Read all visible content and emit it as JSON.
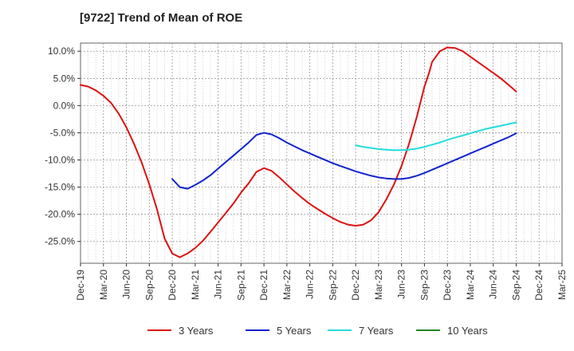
{
  "chart_data": {
    "type": "line",
    "title": "[9722]  Trend of Mean of ROE",
    "xlabel": "",
    "ylabel": "",
    "ylim": [
      -29,
      11.5
    ],
    "y_ticks": [
      10,
      5,
      0,
      -5,
      -10,
      -15,
      -20,
      -25
    ],
    "y_tick_labels": [
      "10.0%",
      "5.0%",
      "0.0%",
      "-5.0%",
      "-10.0%",
      "-15.0%",
      "-20.0%",
      "-25.0%"
    ],
    "x_ticks": [
      "Dec-19",
      "Mar-20",
      "Jun-20",
      "Sep-20",
      "Dec-20",
      "Mar-21",
      "Jun-21",
      "Sep-21",
      "Dec-21",
      "Mar-22",
      "Jun-22",
      "Sep-22",
      "Dec-22",
      "Mar-23",
      "Jun-23",
      "Sep-23",
      "Dec-23",
      "Mar-24",
      "Jun-24",
      "Sep-24",
      "Dec-24",
      "Mar-25"
    ],
    "grid": true,
    "legend_position": "bottom",
    "series": [
      {
        "name": "3 Years",
        "color": "#dd1111",
        "points": [
          [
            0,
            3.8
          ],
          [
            0.33,
            3.5
          ],
          [
            0.67,
            2.8
          ],
          [
            1,
            1.8
          ],
          [
            1.33,
            0.5
          ],
          [
            1.67,
            -1.5
          ],
          [
            2,
            -4.0
          ],
          [
            2.33,
            -7.0
          ],
          [
            2.67,
            -10.5
          ],
          [
            3,
            -14.5
          ],
          [
            3.33,
            -19.0
          ],
          [
            3.67,
            -24.5
          ],
          [
            4,
            -27.2
          ],
          [
            4.33,
            -27.9
          ],
          [
            4.67,
            -27.2
          ],
          [
            5,
            -26.2
          ],
          [
            5.33,
            -24.9
          ],
          [
            5.67,
            -23.2
          ],
          [
            6,
            -21.5
          ],
          [
            6.33,
            -19.8
          ],
          [
            6.67,
            -18.0
          ],
          [
            7,
            -16.0
          ],
          [
            7.33,
            -14.3
          ],
          [
            7.67,
            -12.2
          ],
          [
            8,
            -11.5
          ],
          [
            8.33,
            -12.0
          ],
          [
            8.67,
            -13.2
          ],
          [
            9,
            -14.5
          ],
          [
            9.33,
            -15.8
          ],
          [
            9.67,
            -17.0
          ],
          [
            10,
            -18.1
          ],
          [
            10.33,
            -19.0
          ],
          [
            10.67,
            -19.9
          ],
          [
            11,
            -20.7
          ],
          [
            11.33,
            -21.4
          ],
          [
            11.67,
            -21.9
          ],
          [
            12,
            -22.1
          ],
          [
            12.33,
            -21.9
          ],
          [
            12.67,
            -21.1
          ],
          [
            13,
            -19.6
          ],
          [
            13.33,
            -17.3
          ],
          [
            13.67,
            -14.5
          ],
          [
            14,
            -11.1
          ],
          [
            14.33,
            -7.0
          ],
          [
            14.67,
            -2.0
          ],
          [
            15,
            3.5
          ],
          [
            15.2,
            6.0
          ],
          [
            15.33,
            8.0
          ],
          [
            15.67,
            10.0
          ],
          [
            16,
            10.7
          ],
          [
            16.33,
            10.6
          ],
          [
            16.67,
            10.0
          ],
          [
            17,
            9.0
          ],
          [
            17.33,
            8.0
          ],
          [
            17.67,
            7.0
          ],
          [
            18,
            6.0
          ],
          [
            18.33,
            5.0
          ],
          [
            18.67,
            3.8
          ],
          [
            19,
            2.6
          ]
        ]
      },
      {
        "name": "5 Years",
        "color": "#1122cc",
        "points": [
          [
            4,
            -13.5
          ],
          [
            4.33,
            -15.0
          ],
          [
            4.67,
            -15.3
          ],
          [
            5,
            -14.6
          ],
          [
            5.33,
            -13.8
          ],
          [
            5.67,
            -12.8
          ],
          [
            6,
            -11.6
          ],
          [
            6.33,
            -10.4
          ],
          [
            6.67,
            -9.2
          ],
          [
            7,
            -8.0
          ],
          [
            7.33,
            -6.8
          ],
          [
            7.67,
            -5.4
          ],
          [
            8,
            -5.0
          ],
          [
            8.33,
            -5.3
          ],
          [
            8.67,
            -6.0
          ],
          [
            9,
            -6.8
          ],
          [
            9.33,
            -7.5
          ],
          [
            9.67,
            -8.2
          ],
          [
            10,
            -8.8
          ],
          [
            10.33,
            -9.4
          ],
          [
            10.67,
            -10.0
          ],
          [
            11,
            -10.6
          ],
          [
            11.33,
            -11.1
          ],
          [
            11.67,
            -11.6
          ],
          [
            12,
            -12.1
          ],
          [
            12.33,
            -12.5
          ],
          [
            12.67,
            -12.9
          ],
          [
            13,
            -13.2
          ],
          [
            13.33,
            -13.4
          ],
          [
            13.67,
            -13.5
          ],
          [
            14,
            -13.5
          ],
          [
            14.33,
            -13.3
          ],
          [
            14.67,
            -12.9
          ],
          [
            15,
            -12.4
          ],
          [
            15.33,
            -11.8
          ],
          [
            15.67,
            -11.2
          ],
          [
            16,
            -10.6
          ],
          [
            16.33,
            -10.0
          ],
          [
            16.67,
            -9.4
          ],
          [
            17,
            -8.8
          ],
          [
            17.33,
            -8.2
          ],
          [
            17.67,
            -7.6
          ],
          [
            18,
            -7.0
          ],
          [
            18.33,
            -6.4
          ],
          [
            18.67,
            -5.8
          ],
          [
            19,
            -5.1
          ]
        ]
      },
      {
        "name": "7 Years",
        "color": "#22dddd",
        "points": [
          [
            12,
            -7.3
          ],
          [
            12.33,
            -7.6
          ],
          [
            12.67,
            -7.8
          ],
          [
            13,
            -8.0
          ],
          [
            13.33,
            -8.1
          ],
          [
            13.67,
            -8.2
          ],
          [
            14,
            -8.2
          ],
          [
            14.33,
            -8.1
          ],
          [
            14.67,
            -7.9
          ],
          [
            15,
            -7.6
          ],
          [
            15.33,
            -7.2
          ],
          [
            15.67,
            -6.8
          ],
          [
            16,
            -6.3
          ],
          [
            16.33,
            -5.9
          ],
          [
            16.67,
            -5.5
          ],
          [
            17,
            -5.1
          ],
          [
            17.33,
            -4.7
          ],
          [
            17.67,
            -4.3
          ],
          [
            18,
            -4.0
          ],
          [
            18.33,
            -3.7
          ],
          [
            18.67,
            -3.4
          ],
          [
            19,
            -3.1
          ]
        ]
      },
      {
        "name": "10 Years",
        "color": "#228822",
        "points": []
      }
    ]
  }
}
